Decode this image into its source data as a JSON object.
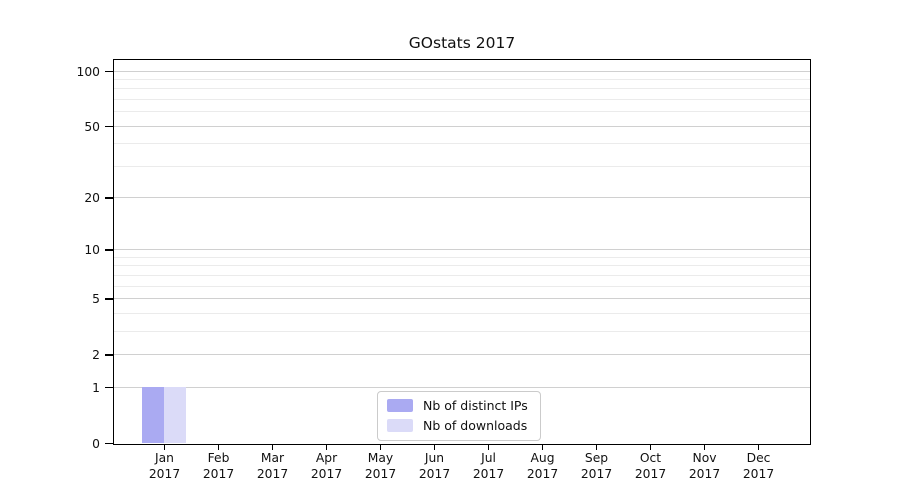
{
  "chart_data": {
    "type": "bar",
    "title": "GOstats 2017",
    "categories": [
      {
        "month": "Jan",
        "year": "2017"
      },
      {
        "month": "Feb",
        "year": "2017"
      },
      {
        "month": "Mar",
        "year": "2017"
      },
      {
        "month": "Apr",
        "year": "2017"
      },
      {
        "month": "May",
        "year": "2017"
      },
      {
        "month": "Jun",
        "year": "2017"
      },
      {
        "month": "Jul",
        "year": "2017"
      },
      {
        "month": "Aug",
        "year": "2017"
      },
      {
        "month": "Sep",
        "year": "2017"
      },
      {
        "month": "Oct",
        "year": "2017"
      },
      {
        "month": "Nov",
        "year": "2017"
      },
      {
        "month": "Dec",
        "year": "2017"
      }
    ],
    "series": [
      {
        "name": "Nb of distinct IPs",
        "color": "#aaaaf2",
        "values": [
          1,
          0,
          0,
          0,
          0,
          0,
          0,
          0,
          0,
          0,
          0,
          0
        ]
      },
      {
        "name": "Nb of downloads",
        "color": "#dbdbf8",
        "values": [
          1,
          0,
          0,
          0,
          0,
          0,
          0,
          0,
          0,
          0,
          0,
          0
        ]
      }
    ],
    "yscale": "log1p",
    "yticks": [
      0,
      1,
      2,
      5,
      10,
      20,
      50,
      100
    ],
    "minor_gridlines": [
      3,
      4,
      6,
      7,
      8,
      9,
      30,
      40,
      60,
      70,
      80,
      90
    ],
    "ylim": [
      0,
      115
    ],
    "grid": true,
    "legend_position": "bottom-center",
    "colors": {
      "major_grid": "#d0d0d0",
      "minor_grid": "#ebebeb",
      "axis": "#000000",
      "background": "#ffffff"
    }
  }
}
